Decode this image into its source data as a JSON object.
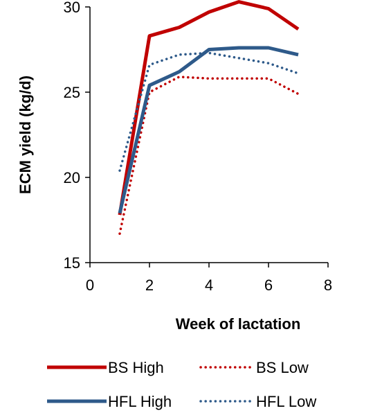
{
  "chart_data": {
    "type": "line",
    "title": "",
    "xlabel": "Week of lactation",
    "ylabel": "ECM yield (kg/d)",
    "xlim": [
      0,
      8
    ],
    "ylim": [
      15,
      30
    ],
    "xticks": [
      0,
      2,
      4,
      6,
      8
    ],
    "yticks": [
      15,
      20,
      25,
      30
    ],
    "x": [
      1,
      2,
      3,
      4,
      5,
      6,
      7
    ],
    "grid": false,
    "legend": "bottom",
    "series": [
      {
        "name": "BS High",
        "color": "#C00000",
        "style": "solid",
        "values": [
          17.8,
          28.3,
          28.8,
          29.7,
          30.3,
          29.9,
          28.7
        ]
      },
      {
        "name": "BS Low",
        "color": "#C00000",
        "style": "dotted",
        "values": [
          16.7,
          25.0,
          25.9,
          25.8,
          25.8,
          25.8,
          24.9
        ]
      },
      {
        "name": "HFL High",
        "color": "#2E5A8A",
        "style": "solid",
        "values": [
          17.9,
          25.4,
          26.2,
          27.5,
          27.6,
          27.6,
          27.2
        ]
      },
      {
        "name": "HFL Low",
        "color": "#2E5A8A",
        "style": "dotted",
        "values": [
          20.4,
          26.6,
          27.2,
          27.3,
          27.0,
          26.7,
          26.1
        ]
      }
    ]
  }
}
